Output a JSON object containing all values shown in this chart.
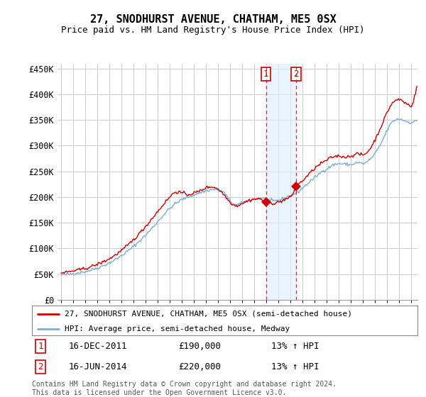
{
  "title": "27, SNODHURST AVENUE, CHATHAM, ME5 0SX",
  "subtitle": "Price paid vs. HM Land Registry's House Price Index (HPI)",
  "ylabel_ticks": [
    "£0",
    "£50K",
    "£100K",
    "£150K",
    "£200K",
    "£250K",
    "£300K",
    "£350K",
    "£400K",
    "£450K"
  ],
  "ytick_vals": [
    0,
    50000,
    100000,
    150000,
    200000,
    250000,
    300000,
    350000,
    400000,
    450000
  ],
  "ylim": [
    0,
    460000
  ],
  "legend_line1": "27, SNODHURST AVENUE, CHATHAM, ME5 0SX (semi-detached house)",
  "legend_line2": "HPI: Average price, semi-detached house, Medway",
  "sale1_date": "16-DEC-2011",
  "sale1_price": "£190,000",
  "sale1_hpi": "13% ↑ HPI",
  "sale2_date": "16-JUN-2014",
  "sale2_price": "£220,000",
  "sale2_hpi": "13% ↑ HPI",
  "footnote": "Contains HM Land Registry data © Crown copyright and database right 2024.\nThis data is licensed under the Open Government Licence v3.0.",
  "line_color_red": "#cc0000",
  "line_color_blue": "#7aafd4",
  "fill_color": "#ddeeff",
  "sale1_x": 2011.958,
  "sale2_x": 2014.458,
  "sale1_y": 190000,
  "sale2_y": 220000,
  "background_color": "#ffffff",
  "grid_color": "#cccccc",
  "xlim_left": 1995.0,
  "xlim_right": 2024.5
}
